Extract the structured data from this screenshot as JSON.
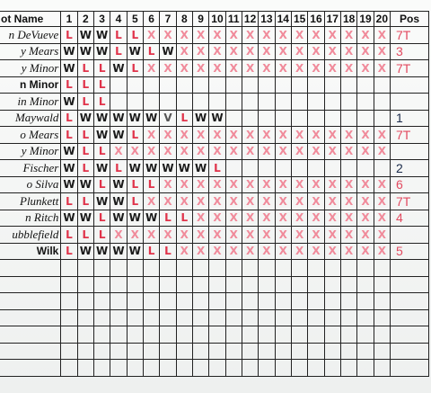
{
  "header": {
    "name": "ot Name",
    "columns": [
      "1",
      "2",
      "3",
      "4",
      "5",
      "6",
      "7",
      "8",
      "9",
      "10",
      "11",
      "12",
      "13",
      "14",
      "15",
      "16",
      "17",
      "18",
      "19",
      "20"
    ],
    "pos": "Pos"
  },
  "rows": [
    {
      "name": "n DeVueve",
      "cells": [
        "L",
        "W",
        "W",
        "L",
        "L",
        "X",
        "X",
        "X",
        "X",
        "X",
        "X",
        "X",
        "X",
        "X",
        "X",
        "X",
        "X",
        "X",
        "X",
        "X"
      ],
      "pos": "7T"
    },
    {
      "name": "y Mears",
      "cells": [
        "W",
        "W",
        "W",
        "L",
        "W",
        "L",
        "W",
        "X",
        "X",
        "X",
        "X",
        "X",
        "X",
        "X",
        "X",
        "X",
        "X",
        "X",
        "X",
        "X"
      ],
      "pos": "3"
    },
    {
      "name": "y Minor",
      "cells": [
        "W",
        "L",
        "L",
        "W",
        "L",
        "X",
        "X",
        "X",
        "X",
        "X",
        "X",
        "X",
        "X",
        "X",
        "X",
        "X",
        "X",
        "X",
        "X",
        "X"
      ],
      "pos": "7T"
    },
    {
      "name": "n Minor",
      "cells": [
        "L",
        "L",
        "L",
        null,
        null,
        null,
        null,
        null,
        null,
        null,
        null,
        null,
        null,
        null,
        null,
        null,
        null,
        null,
        null,
        null
      ],
      "pos": null
    },
    {
      "name": "in Minor",
      "cells": [
        "W",
        "L",
        "L",
        null,
        null,
        null,
        null,
        null,
        null,
        null,
        null,
        null,
        null,
        null,
        null,
        null,
        null,
        null,
        null,
        null
      ],
      "pos": null
    },
    {
      "name": "Maywald",
      "cells": [
        "L",
        "W",
        "W",
        "W",
        "W",
        "W",
        "V",
        "L",
        "W",
        "W",
        null,
        null,
        null,
        null,
        null,
        null,
        null,
        null,
        null,
        null
      ],
      "pos": "1"
    },
    {
      "name": "o Mears",
      "cells": [
        "L",
        "L",
        "W",
        "W",
        "L",
        "X",
        "X",
        "X",
        "X",
        "X",
        "X",
        "X",
        "X",
        "X",
        "X",
        "X",
        "X",
        "X",
        "X",
        "X"
      ],
      "pos": "7T"
    },
    {
      "name": "y Minor",
      "cells": [
        "W",
        "L",
        "L",
        "X",
        "X",
        "X",
        "X",
        "X",
        "X",
        "X",
        "X",
        "X",
        "X",
        "X",
        "X",
        "X",
        "X",
        "X",
        "X",
        "X"
      ],
      "pos": null
    },
    {
      "name": "Fischer",
      "cells": [
        "W",
        "L",
        "W",
        "L",
        "W",
        "W",
        "W",
        "W",
        "W",
        "L",
        null,
        null,
        null,
        null,
        null,
        null,
        null,
        null,
        null,
        null
      ],
      "pos": "2"
    },
    {
      "name": "o Silva",
      "cells": [
        "W",
        "W",
        "L",
        "W",
        "L",
        "L",
        "X",
        "X",
        "X",
        "X",
        "X",
        "X",
        "X",
        "X",
        "X",
        "X",
        "X",
        "X",
        "X",
        "X"
      ],
      "pos": "6"
    },
    {
      "name": "Plunkett",
      "cells": [
        "L",
        "L",
        "W",
        "W",
        "L",
        "X",
        "X",
        "X",
        "X",
        "X",
        "X",
        "X",
        "X",
        "X",
        "X",
        "X",
        "X",
        "X",
        "X",
        "X"
      ],
      "pos": "7T"
    },
    {
      "name": "n Ritch",
      "cells": [
        "W",
        "W",
        "L",
        "W",
        "W",
        "W",
        "L",
        "L",
        "X",
        "X",
        "X",
        "X",
        "X",
        "X",
        "X",
        "X",
        "X",
        "X",
        "X",
        "X"
      ],
      "pos": "4"
    },
    {
      "name": "ubblefield",
      "cells": [
        "L",
        "L",
        "L",
        "X",
        "X",
        "X",
        "X",
        "X",
        "X",
        "X",
        "X",
        "X",
        "X",
        "X",
        "X",
        "X",
        "X",
        "X",
        "X",
        "X"
      ],
      "pos": null
    },
    {
      "name": "Wilk",
      "cells": [
        "L",
        "W",
        "W",
        "W",
        "W",
        "L",
        "L",
        "X",
        "X",
        "X",
        "X",
        "X",
        "X",
        "X",
        "X",
        "X",
        "X",
        "X",
        "X",
        "X"
      ],
      "pos": "5"
    }
  ]
}
